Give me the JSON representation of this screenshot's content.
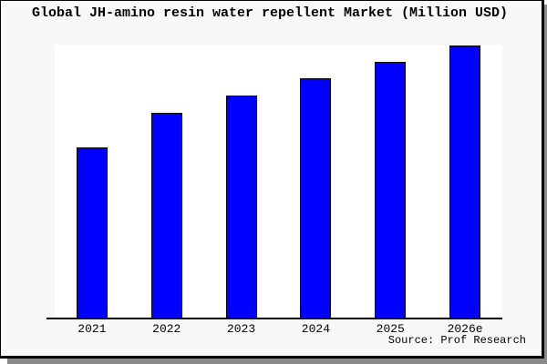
{
  "title": "Global JH-amino resin water repellent Market (Million USD)",
  "source": "Source: Prof Research",
  "colors": {
    "bar_fill": "#0000ff",
    "bar_border": "#000000",
    "plot_background": "#ffffff",
    "canvas_background": "#f8f8f8",
    "frame_border": "#000000",
    "frame_shadow": "#8a8a8a",
    "axis": "#000000",
    "text": "#000000"
  },
  "chart_data": {
    "type": "bar",
    "title": "Global JH-amino resin water repellent Market (Million USD)",
    "categories": [
      "2021",
      "2022",
      "2023",
      "2024",
      "2025",
      "2026e"
    ],
    "values": [
      188,
      226,
      245,
      264,
      282,
      300
    ],
    "value_note": "y-axis is unlabeled; values are relative bar heights with 2026e = 300",
    "xlabel": "",
    "ylabel": "",
    "ylim": [
      0,
      301
    ],
    "grid": false,
    "legend": false,
    "source": "Source: Prof Research"
  }
}
